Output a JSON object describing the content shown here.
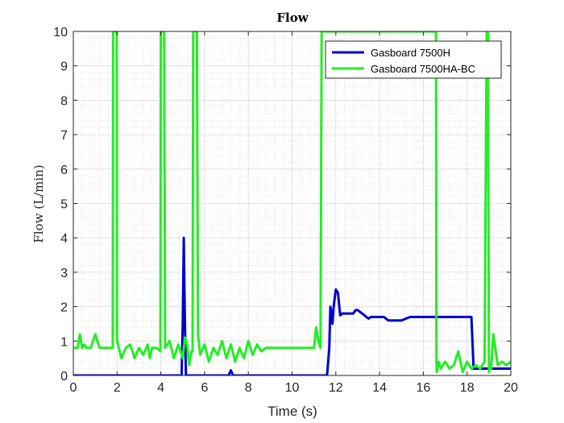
{
  "chart_data": {
    "type": "line",
    "title": "Flow",
    "xlabel": "Time (s)",
    "ylabel": "Flow (L/min)",
    "xlim": [
      0,
      20
    ],
    "ylim": [
      0,
      10
    ],
    "xticks": [
      0,
      2,
      4,
      6,
      8,
      10,
      12,
      14,
      16,
      18,
      20
    ],
    "yticks": [
      0,
      1,
      2,
      3,
      4,
      5,
      6,
      7,
      8,
      9,
      10
    ],
    "grid": "major-and-minor-dotted",
    "legend": "top-right",
    "series": [
      {
        "name": "Gasboard 7500H",
        "color": "#0000cc",
        "x": [
          0,
          4.95,
          5.0,
          5.05,
          5.1,
          5.15,
          7.1,
          7.2,
          7.3,
          11.6,
          11.7,
          11.75,
          11.8,
          11.85,
          11.9,
          12.0,
          12.1,
          12.2,
          12.3,
          12.4,
          12.6,
          12.8,
          12.9,
          13.0,
          13.2,
          13.4,
          13.5,
          13.6,
          14.0,
          14.2,
          14.4,
          15.0,
          15.2,
          15.4,
          18.0,
          18.2,
          18.3,
          18.8,
          19.0,
          20.0
        ],
        "y": [
          0,
          0,
          1.5,
          4.0,
          1.5,
          0,
          0,
          0.15,
          0,
          0,
          0.8,
          2.0,
          1.8,
          1.5,
          2.0,
          2.5,
          2.4,
          1.75,
          1.8,
          1.8,
          1.8,
          1.8,
          1.9,
          1.9,
          1.8,
          1.7,
          1.65,
          1.7,
          1.7,
          1.7,
          1.6,
          1.6,
          1.65,
          1.7,
          1.7,
          1.7,
          0.2,
          0.2,
          0.2,
          0.2
        ]
      },
      {
        "name": "Gasboard 7500HA-BC",
        "color": "#22ee22",
        "x": [
          0,
          0.2,
          0.3,
          0.4,
          0.5,
          0.6,
          0.8,
          1.0,
          1.2,
          1.3,
          1.4,
          1.5,
          1.6,
          1.8,
          1.82,
          1.85,
          1.95,
          1.98,
          2.0,
          2.2,
          2.4,
          2.6,
          2.8,
          3.0,
          3.2,
          3.4,
          3.5,
          3.6,
          3.8,
          3.98,
          4.0,
          4.03,
          4.12,
          4.15,
          4.2,
          4.4,
          4.6,
          4.8,
          5.0,
          5.1,
          5.2,
          5.3,
          5.4,
          5.45,
          5.48,
          5.52,
          5.62,
          5.65,
          5.7,
          5.8,
          6.0,
          6.2,
          6.4,
          6.6,
          6.8,
          7.0,
          7.2,
          7.4,
          7.6,
          7.8,
          8.0,
          8.2,
          8.4,
          8.6,
          8.8,
          9.0,
          9.2,
          9.4,
          10.0,
          10.5,
          11.0,
          11.1,
          11.2,
          11.3,
          11.35,
          11.38,
          11.5,
          12.0,
          13.0,
          14.0,
          15.0,
          16.0,
          16.5,
          16.58,
          16.6,
          16.62,
          16.7,
          16.8,
          17.0,
          17.2,
          17.4,
          17.6,
          17.8,
          18.0,
          18.2,
          18.4,
          18.6,
          18.8,
          18.9,
          18.95,
          19.0,
          19.05,
          19.1,
          19.2,
          19.4,
          19.6,
          19.8,
          20.0
        ],
        "y": [
          0.8,
          0.8,
          1.2,
          0.8,
          0.9,
          0.8,
          0.8,
          1.2,
          0.8,
          0.8,
          0.8,
          0.8,
          0.8,
          0.8,
          10,
          10,
          10,
          10,
          1.0,
          0.5,
          0.8,
          0.9,
          0.5,
          0.8,
          0.6,
          0.9,
          0.5,
          0.8,
          0.8,
          0.7,
          10,
          10,
          10,
          10,
          0.8,
          1.0,
          0.5,
          0.9,
          0.5,
          1.1,
          0.9,
          0.3,
          0.7,
          0.7,
          10,
          10,
          10,
          10,
          1.2,
          0.6,
          0.9,
          0.4,
          0.8,
          0.6,
          1.0,
          0.5,
          0.9,
          0.4,
          0.8,
          0.5,
          1.0,
          0.6,
          0.9,
          0.7,
          0.8,
          0.8,
          0.8,
          0.8,
          0.8,
          0.8,
          0.8,
          1.4,
          1.0,
          0.8,
          10,
          10,
          10,
          10,
          10,
          10,
          10,
          10,
          10,
          10,
          0.3,
          0.1,
          0.4,
          0.2,
          0.4,
          0.2,
          0.3,
          0.7,
          0.1,
          0.4,
          0.2,
          0.3,
          0.2,
          0.4,
          10,
          10,
          0.1,
          0.3,
          0.2,
          1.2,
          0.3,
          0.4,
          0.3,
          0.4
        ]
      }
    ]
  }
}
